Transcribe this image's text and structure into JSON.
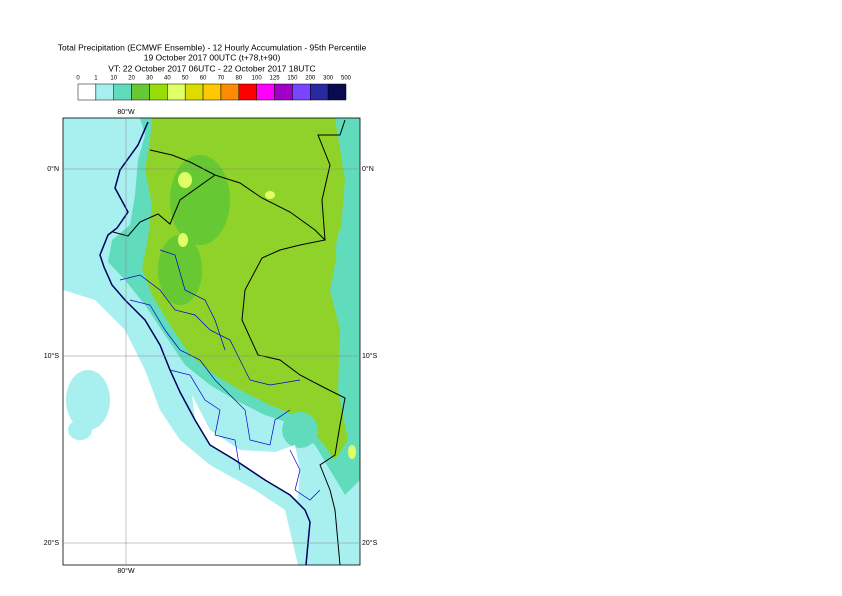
{
  "title_lines": [
    "Total Precipitation (ECMWF Ensemble) - 12 Hourly Accumulation - 95th Percentile",
    "19 October 2017 00UTC (t+78,t+90)",
    "VT: 22 October 2017 06UTC - 22 October 2017 18UTC"
  ],
  "legend": {
    "thresholds": [
      0,
      1,
      10,
      20,
      30,
      40,
      50,
      60,
      70,
      80,
      100,
      125,
      150,
      200,
      300,
      500
    ],
    "colors": [
      "#ffffff",
      "#a8f0f0",
      "#60dcbc",
      "#66c832",
      "#98dc0a",
      "#e0ff66",
      "#dcdc00",
      "#ffc800",
      "#ff8c00",
      "#ff0000",
      "#ff00ff",
      "#a000c8",
      "#7846ff",
      "#2828a0",
      "#0a0a50"
    ]
  },
  "map": {
    "parallels": [
      {
        "lat": 0,
        "label": "0°N"
      },
      {
        "lat": -10,
        "label": "10°S"
      },
      {
        "lat": -20,
        "label": "20°S"
      }
    ],
    "meridians": [
      {
        "lon": -80,
        "label": "80°W"
      }
    ]
  }
}
